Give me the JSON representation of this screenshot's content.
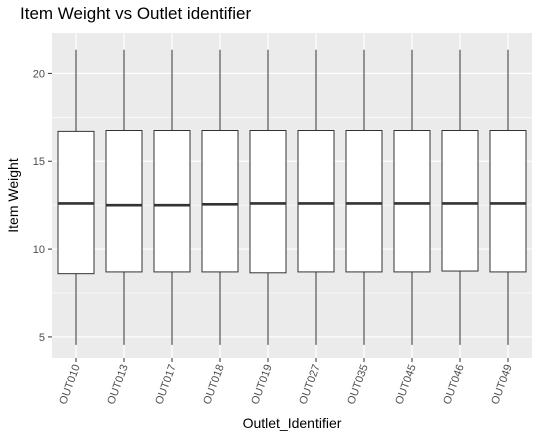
{
  "chart_data": {
    "type": "box",
    "title": "Item Weight vs Outlet identifier",
    "xlabel": "Outlet_Identifier",
    "ylabel": "Item Weight",
    "ylim": [
      3.8,
      22.3
    ],
    "yticks": [
      5,
      10,
      15,
      20
    ],
    "grid": true,
    "categories": [
      "OUT010",
      "OUT013",
      "OUT017",
      "OUT018",
      "OUT019",
      "OUT027",
      "OUT035",
      "OUT045",
      "OUT046",
      "OUT049"
    ],
    "boxes": [
      {
        "min": 4.55,
        "q1": 8.6,
        "median": 12.6,
        "q3": 16.7,
        "max": 21.35
      },
      {
        "min": 4.55,
        "q1": 8.7,
        "median": 12.5,
        "q3": 16.75,
        "max": 21.35
      },
      {
        "min": 4.55,
        "q1": 8.7,
        "median": 12.5,
        "q3": 16.75,
        "max": 21.35
      },
      {
        "min": 4.55,
        "q1": 8.7,
        "median": 12.55,
        "q3": 16.75,
        "max": 21.35
      },
      {
        "min": 4.55,
        "q1": 8.65,
        "median": 12.6,
        "q3": 16.75,
        "max": 21.35
      },
      {
        "min": 4.55,
        "q1": 8.7,
        "median": 12.6,
        "q3": 16.75,
        "max": 21.35
      },
      {
        "min": 4.55,
        "q1": 8.7,
        "median": 12.6,
        "q3": 16.75,
        "max": 21.35
      },
      {
        "min": 4.55,
        "q1": 8.7,
        "median": 12.6,
        "q3": 16.75,
        "max": 21.35
      },
      {
        "min": 4.55,
        "q1": 8.75,
        "median": 12.6,
        "q3": 16.75,
        "max": 21.35
      },
      {
        "min": 4.55,
        "q1": 8.7,
        "median": 12.6,
        "q3": 16.75,
        "max": 21.35
      }
    ],
    "colors": {
      "panel": "#ebebeb",
      "grid": "#ffffff",
      "box_fill": "#ffffff",
      "box_stroke": "#333333"
    }
  }
}
